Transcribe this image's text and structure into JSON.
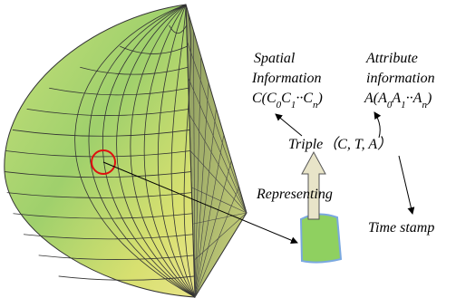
{
  "spatial": {
    "line1": "Spatial",
    "line2": "Information",
    "formula_parts": [
      "C(C",
      "0",
      "C",
      "1",
      "··C",
      "n",
      ")"
    ]
  },
  "attribute": {
    "line1": "Attribute",
    "line2": "information",
    "formula_parts": [
      "A(A",
      "0",
      "A",
      "1",
      "··A",
      "n",
      ")"
    ]
  },
  "triple": "Triple（C, T, A）",
  "representing": "Representing",
  "time_stamp": "Time stamp"
}
